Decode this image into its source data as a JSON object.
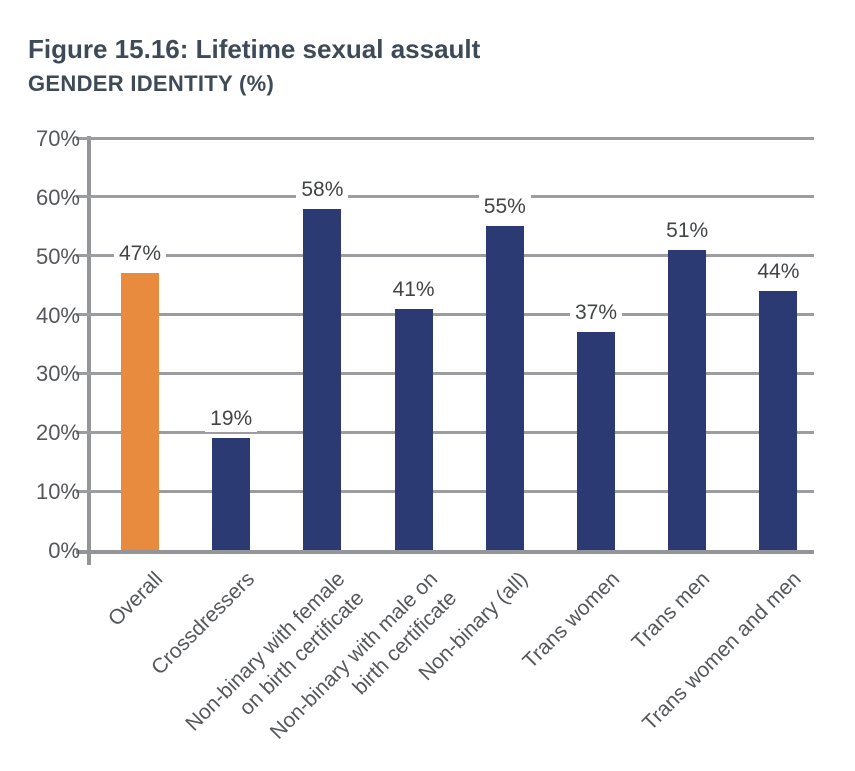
{
  "figure": {
    "title": "Figure 15.16: Lifetime sexual assault",
    "subtitle": "GENDER IDENTITY (%)"
  },
  "chart_data": {
    "type": "bar",
    "title": "Figure 15.16: Lifetime sexual assault",
    "subtitle": "GENDER IDENTITY (%)",
    "xlabel": "",
    "ylabel": "",
    "ylim": [
      0,
      70
    ],
    "y_tick_step": 10,
    "y_tick_labels": [
      "0%",
      "10%",
      "20%",
      "30%",
      "40%",
      "50%",
      "60%",
      "70%"
    ],
    "grid": true,
    "legend": false,
    "categories": [
      "Overall",
      "Crossdressers",
      "Non-binary with female on birth certificate",
      "Non-binary with male on birth certificate",
      "Non-binary (all)",
      "Trans women",
      "Trans men",
      "Trans women and men"
    ],
    "category_display_lines": [
      [
        "Overall"
      ],
      [
        "Crossdressers"
      ],
      [
        "Non-binary with female",
        "on birth certificate"
      ],
      [
        "Non-binary with male on",
        "birth certificate"
      ],
      [
        "Non-binary (all)"
      ],
      [
        "Trans women"
      ],
      [
        "Trans men"
      ],
      [
        "Trans women and men"
      ]
    ],
    "values": [
      47,
      19,
      58,
      41,
      55,
      37,
      51,
      44
    ],
    "value_labels": [
      "47%",
      "19%",
      "58%",
      "41%",
      "55%",
      "37%",
      "51%",
      "44%"
    ],
    "bar_colors": [
      "#e98b3e",
      "#2b3a72",
      "#2b3a72",
      "#2b3a72",
      "#2b3a72",
      "#2b3a72",
      "#2b3a72",
      "#2b3a72"
    ],
    "colors": {
      "highlight_bar": "#e98b3e",
      "default_bar": "#2b3a72",
      "title_text": "#3e4a58",
      "axis_text": "#55575b",
      "value_text": "#424446",
      "gridline": "#9b9da0",
      "axis_line": "#939598"
    }
  }
}
